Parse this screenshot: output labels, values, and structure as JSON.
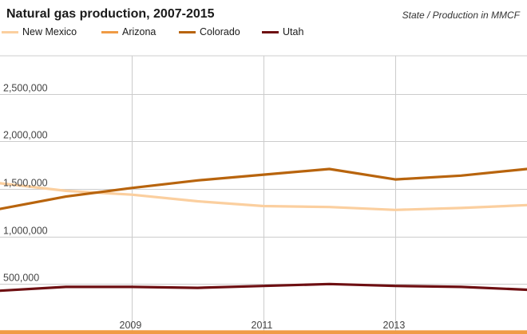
{
  "chart_data": {
    "type": "line",
    "title": "Natural gas production, 2007-2015",
    "subtitle": "State / Production in MMCF",
    "x": [
      2007,
      2008,
      2009,
      2010,
      2011,
      2012,
      2013,
      2014,
      2015
    ],
    "x_tick_labels": [
      "2009",
      "2011",
      "2013"
    ],
    "y_tick_labels": [
      "500,000",
      "1,000,000",
      "1,500,000",
      "2,000,000",
      "2,500,000"
    ],
    "xlim": [
      2007,
      2015
    ],
    "ylim": [
      0,
      2900000
    ],
    "grid": true,
    "legend_position": "top-left",
    "series": [
      {
        "name": "New Mexico",
        "color": "#fbcf9f",
        "values": [
          1560000,
          1480000,
          1440000,
          1370000,
          1320000,
          1310000,
          1280000,
          1300000,
          1330000
        ]
      },
      {
        "name": "Arizona",
        "color": "#f09b45",
        "values": [
          700,
          500,
          700,
          200,
          100,
          100,
          100,
          100,
          100
        ]
      },
      {
        "name": "Colorado",
        "color": "#b8640d",
        "values": [
          1290000,
          1420000,
          1510000,
          1590000,
          1650000,
          1710000,
          1600000,
          1640000,
          1710000
        ]
      },
      {
        "name": "Utah",
        "color": "#6e0f12",
        "values": [
          430000,
          470000,
          470000,
          460000,
          480000,
          500000,
          480000,
          470000,
          440000
        ]
      }
    ]
  }
}
